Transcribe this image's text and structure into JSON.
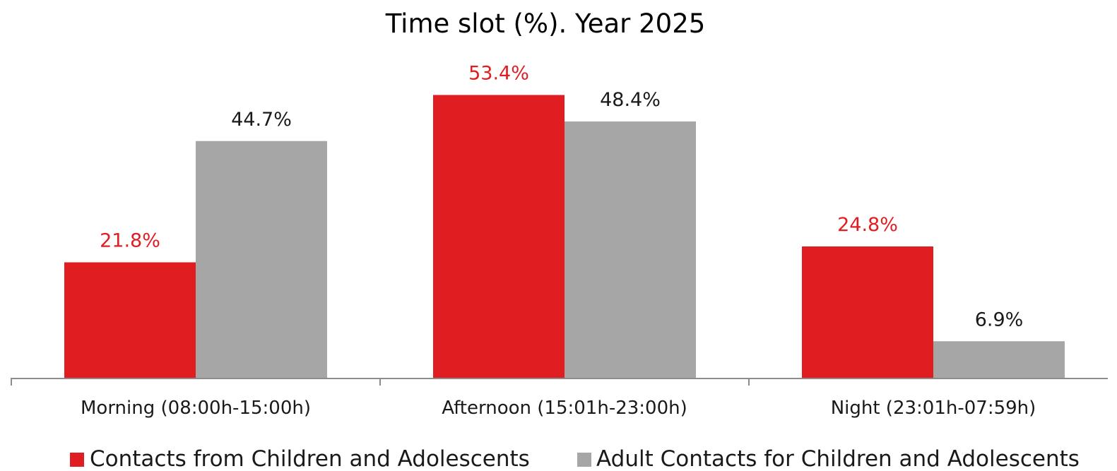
{
  "chart_data": {
    "type": "bar",
    "title": "Time slot (%). Year 2025",
    "xlabel": "",
    "ylabel": "",
    "categories": [
      "Morning (08:00h-15:00h)",
      "Afternoon (15:01h-23:00h)",
      "Night (23:01h-07:59h)"
    ],
    "series": [
      {
        "name": "Contacts from Children and Adolescents",
        "color": "#e01e22",
        "values": [
          21.8,
          53.4,
          24.8
        ],
        "labels": [
          "21.8%",
          "53.4%",
          "24.8%"
        ]
      },
      {
        "name": "Adult Contacts for Children and Adolescents",
        "color": "#a6a6a6",
        "values": [
          44.7,
          48.4,
          6.9
        ],
        "labels": [
          "44.7%",
          "48.4%",
          "6.9%"
        ]
      }
    ],
    "ylim": [
      0,
      60
    ],
    "grid": false,
    "legend_position": "bottom"
  }
}
